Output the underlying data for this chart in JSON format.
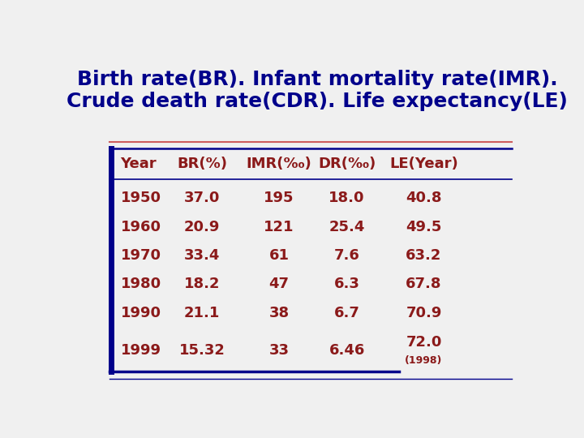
{
  "title_line1": "Birth rate(BR). Infant mortality rate(IMR).",
  "title_line2": "Crude death rate(CDR). Life expectancy(LE)",
  "title_color": "#00008B",
  "title_fontsize": 18,
  "header": [
    "Year",
    "BR(%)",
    "IMR(‰)",
    "DR(‰)",
    "LE(Year)"
  ],
  "rows": [
    [
      "1950",
      "37.0",
      "195",
      "18.0",
      "40.8"
    ],
    [
      "1960",
      "20.9",
      "121",
      "25.4",
      "49.5"
    ],
    [
      "1970",
      "33.4",
      "61",
      "7.6",
      "63.2"
    ],
    [
      "1980",
      "18.2",
      "47",
      "6.3",
      "67.8"
    ],
    [
      "1990",
      "21.1",
      "38",
      "6.7",
      "70.9"
    ],
    [
      "1999",
      "15.32",
      "33",
      "6.46",
      "72.0|(1998)"
    ]
  ],
  "header_color": "#8B1A1A",
  "data_color": "#8B1A1A",
  "separator_color_top": "#CD5C5C",
  "separator_color_dark": "#00008B",
  "left_bar_color": "#00008B",
  "background_color": "#F0F0F0"
}
